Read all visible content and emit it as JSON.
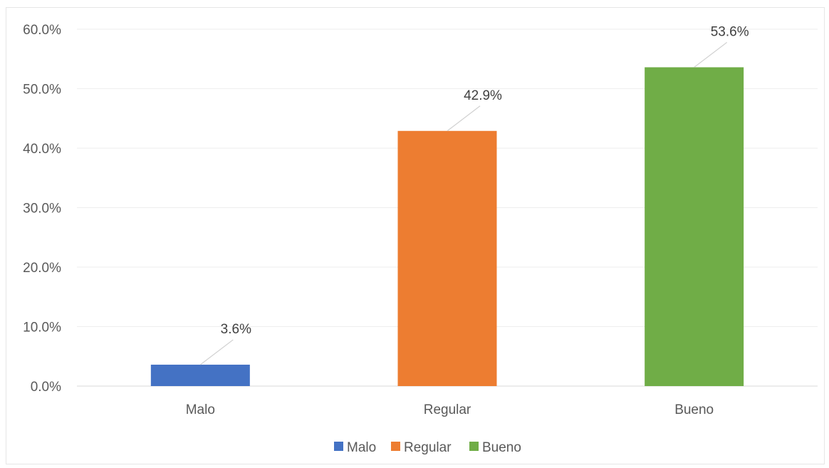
{
  "chart_data": {
    "type": "bar",
    "categories": [
      "Malo",
      "Regular",
      "Bueno"
    ],
    "values": [
      3.6,
      42.9,
      53.6
    ],
    "value_labels": [
      "3.6%",
      "42.9%",
      "53.6%"
    ],
    "colors": [
      "#4472C4",
      "#ED7D31",
      "#70AD47"
    ],
    "ylim": [
      0,
      60
    ],
    "yticks": [
      0,
      10,
      20,
      30,
      40,
      50,
      60
    ],
    "ytick_labels": [
      "0.0%",
      "10.0%",
      "20.0%",
      "30.0%",
      "40.0%",
      "50.0%",
      "60.0%"
    ],
    "grid": true,
    "legend": {
      "position": "bottom",
      "entries": [
        "Malo",
        "Regular",
        "Bueno"
      ]
    }
  }
}
